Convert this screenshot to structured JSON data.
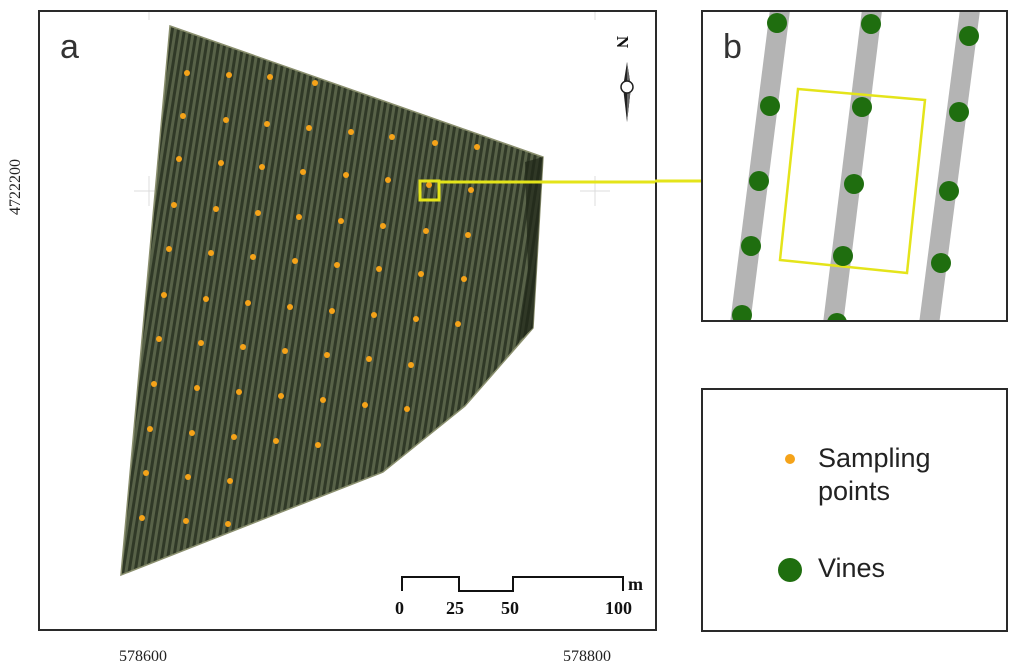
{
  "panel_a": {
    "letter": "a",
    "north_label": "N",
    "y_tick_label": "4722200",
    "x_tick_labels": [
      "578600",
      "578800"
    ],
    "scale_bar": {
      "labels": [
        "0",
        "25",
        "50",
        "100"
      ],
      "unit": "m"
    }
  },
  "panel_b": {
    "letter": "b"
  },
  "legend": {
    "items": [
      {
        "label": "Sampling points",
        "icon": "orange-dot-icon",
        "color": "#f5a319"
      },
      {
        "label": "Vines",
        "icon": "green-circle-icon",
        "color": "#1f6e0f"
      }
    ]
  },
  "colors": {
    "field": "#3b4530",
    "highlight": "#e4e41a",
    "sampling_point": "#f5a319",
    "vine": "#1f6e0f",
    "row": "#b4b4b4"
  }
}
